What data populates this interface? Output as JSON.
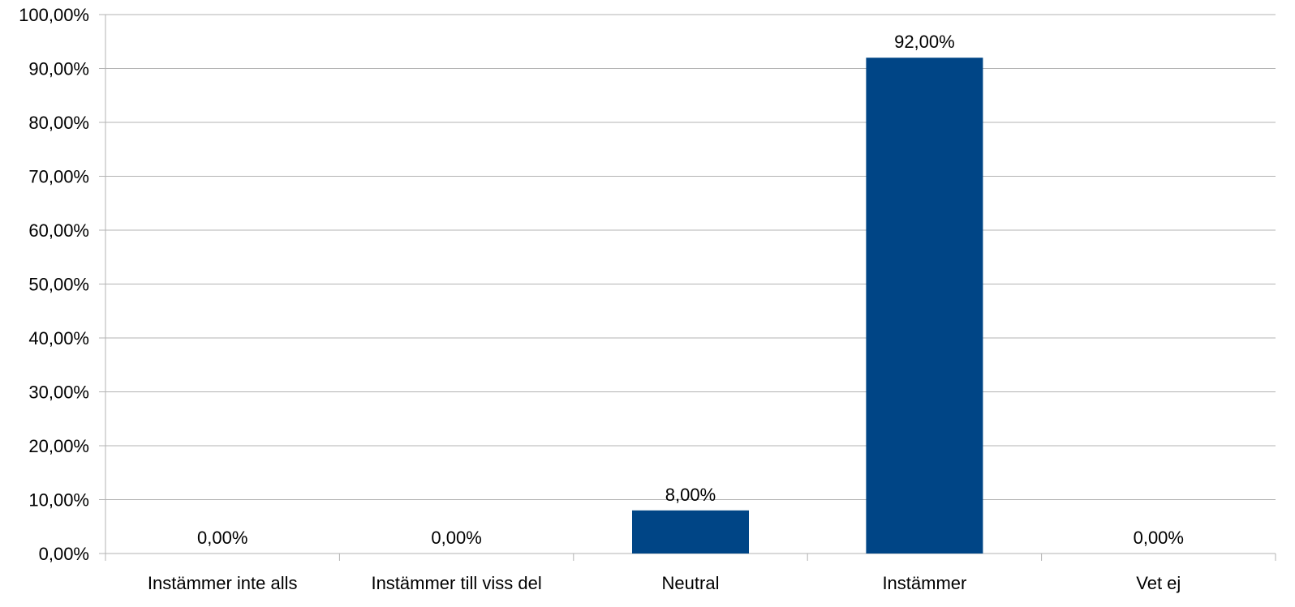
{
  "colors": {
    "bar": "#004586",
    "grid": "#b3b3b3",
    "text": "#000000",
    "background": "#ffffff"
  },
  "chart_data": {
    "type": "bar",
    "title": "",
    "xlabel": "",
    "ylabel": "",
    "categories": [
      "Instämmer inte alls",
      "Instämmer till viss del",
      "Neutral",
      "Instämmer",
      "Vet ej"
    ],
    "values": [
      0,
      0,
      8,
      92,
      0
    ],
    "data_labels": [
      "0,00%",
      "0,00%",
      "8,00%",
      "92,00%",
      "0,00%"
    ],
    "ylim": [
      0,
      100
    ],
    "yticks": [
      0,
      10,
      20,
      30,
      40,
      50,
      60,
      70,
      80,
      90,
      100
    ],
    "ytick_labels": [
      "0,00%",
      "10,00%",
      "20,00%",
      "30,00%",
      "40,00%",
      "50,00%",
      "60,00%",
      "70,00%",
      "80,00%",
      "90,00%",
      "100,00%"
    ],
    "grid": true,
    "legend": "none"
  }
}
